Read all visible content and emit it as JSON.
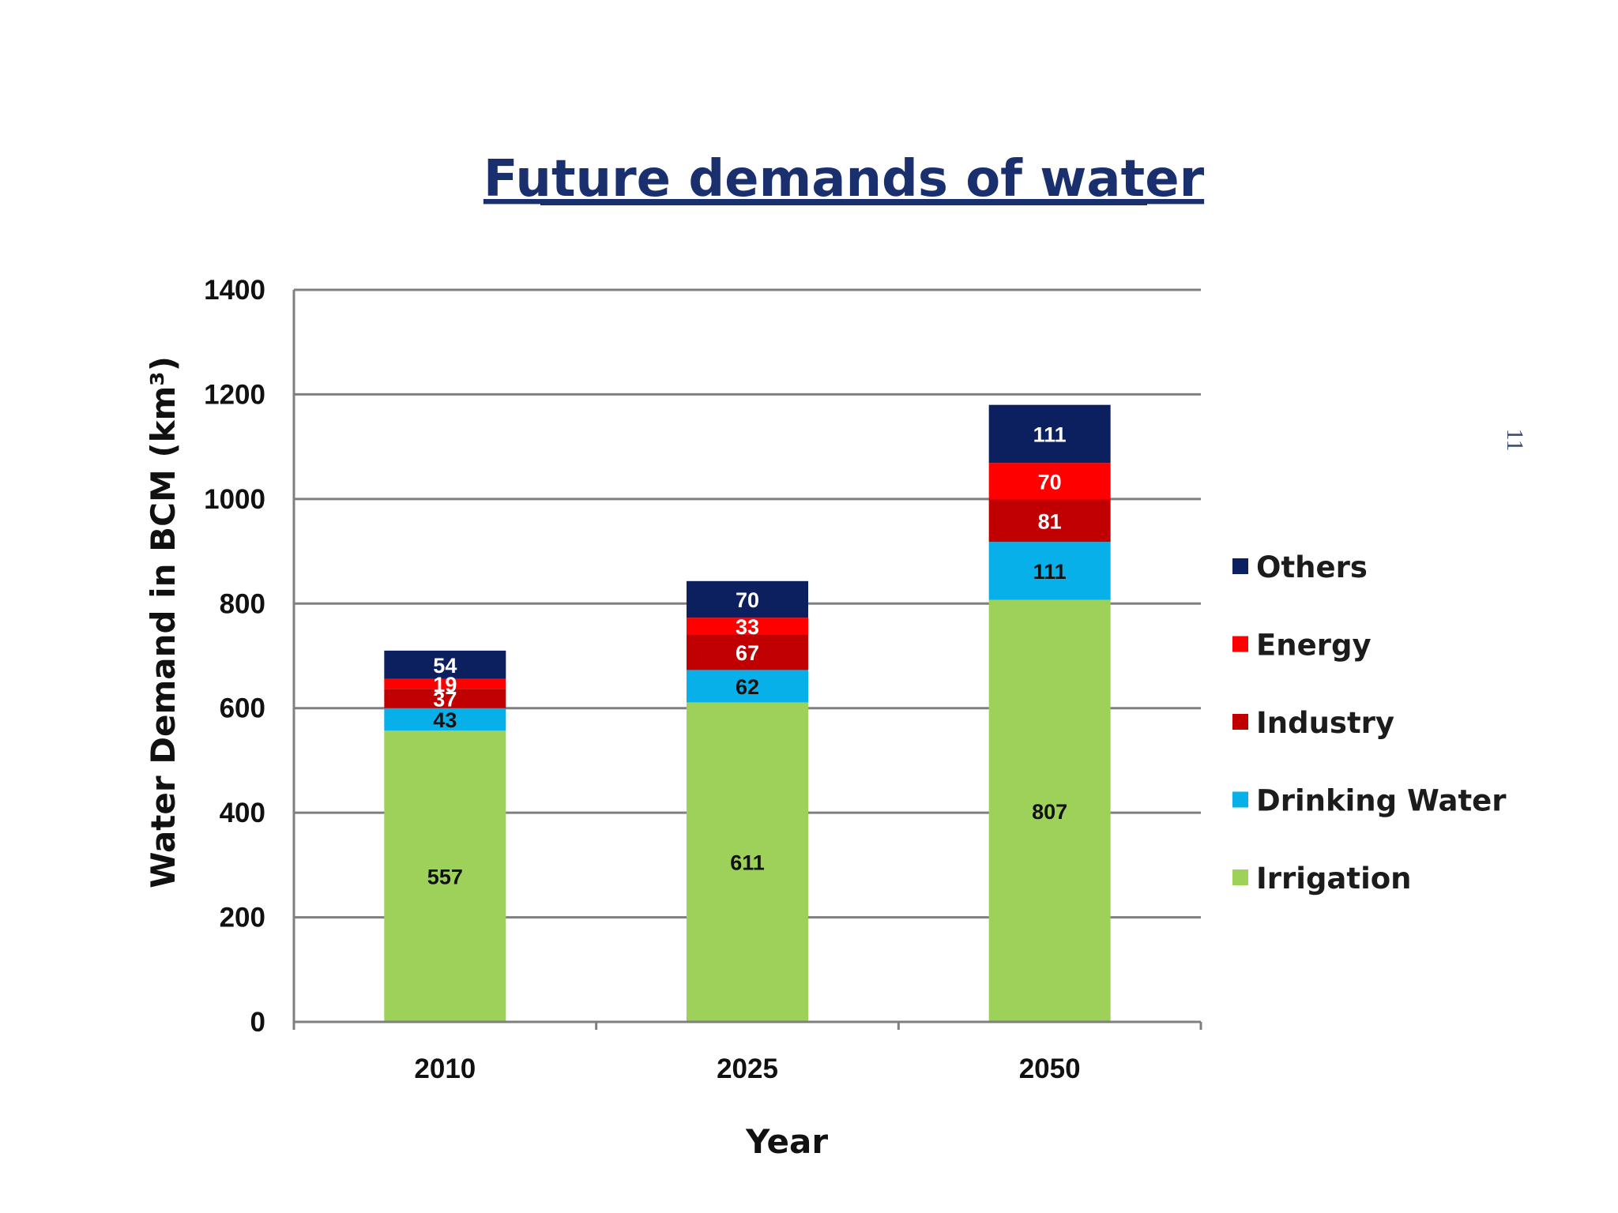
{
  "page_number": "11",
  "chart_data": {
    "type": "bar",
    "stacked": true,
    "title": "Future demands of water",
    "xlabel": "Year",
    "ylabel": "Water Demand in BCM (km³)",
    "ylim": [
      0,
      1400
    ],
    "yticks": [
      0,
      200,
      400,
      600,
      800,
      1000,
      1200,
      1400
    ],
    "grid": true,
    "legend_position": "right",
    "categories": [
      "2010",
      "2025",
      "2050"
    ],
    "series": [
      {
        "name": "Irrigation",
        "color": "#9dd15a",
        "label_color": "#111111",
        "values": [
          557,
          611,
          807
        ]
      },
      {
        "name": "Drinking Water",
        "color": "#08b0ea",
        "label_color": "#111111",
        "values": [
          43,
          62,
          111
        ]
      },
      {
        "name": "Industry",
        "color": "#c00000",
        "label_color": "#ffffff",
        "values": [
          37,
          67,
          81
        ]
      },
      {
        "name": "Energy",
        "color": "#ff0000",
        "label_color": "#ffffff",
        "values": [
          19,
          33,
          70
        ]
      },
      {
        "name": "Others",
        "color": "#0c1f5e",
        "label_color": "#ffffff",
        "values": [
          54,
          70,
          111
        ]
      }
    ],
    "legend_order": [
      "Others",
      "Energy",
      "Industry",
      "Drinking Water",
      "Irrigation"
    ]
  }
}
